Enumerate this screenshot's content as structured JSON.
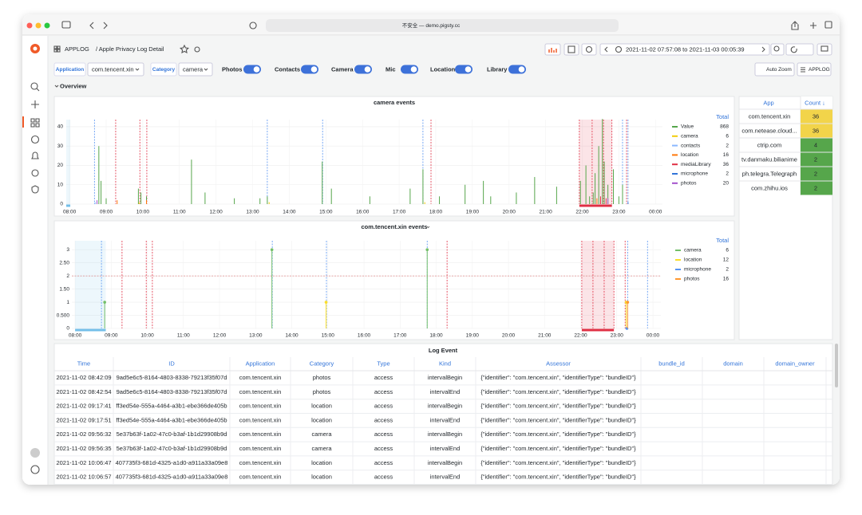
{
  "browser": {
    "address": "不安全 — demo.pigsty.cc"
  },
  "header": {
    "folder": "APPLOG",
    "title": "/ Apple Privacy Log Detail",
    "time_range": "2021-11-02 07:57:08 to 2021-11-03 00:05:39"
  },
  "variables": [
    {
      "label": "Application",
      "value": "com.tencent.xin"
    },
    {
      "label": "Category",
      "value": "camera"
    }
  ],
  "toggles": [
    "Photos",
    "Contacts",
    "Camera",
    "Mic",
    "Location",
    "Library"
  ],
  "buttons": [
    "Auto Zoom",
    "APPLOG"
  ],
  "row_title": "Overview",
  "chart_data": [
    {
      "type": "timeseries",
      "title": "camera events",
      "legend_header": "Total",
      "grid": true,
      "points": false,
      "xlim": [
        7.91,
        24.19
      ],
      "ylim": [
        0,
        43.7
      ],
      "xticks": [
        {
          "value": 8,
          "label": "08:00"
        },
        {
          "value": 9,
          "label": "09:00"
        },
        {
          "value": 10,
          "label": "10:00"
        },
        {
          "value": 11,
          "label": "11:00"
        },
        {
          "value": 12,
          "label": "12:00"
        },
        {
          "value": 13,
          "label": "13:00"
        },
        {
          "value": 14,
          "label": "14:00"
        },
        {
          "value": 15,
          "label": "15:00"
        },
        {
          "value": 16,
          "label": "16:00"
        },
        {
          "value": 17,
          "label": "17:00"
        },
        {
          "value": 18,
          "label": "18:00"
        },
        {
          "value": 19,
          "label": "19:00"
        },
        {
          "value": 20,
          "label": "20:00"
        },
        {
          "value": 21,
          "label": "21:00"
        },
        {
          "value": 22,
          "label": "22:00"
        },
        {
          "value": 23,
          "label": "23:00"
        },
        {
          "value": 24,
          "label": "00:00"
        }
      ],
      "yticks": [
        0,
        10,
        20,
        30,
        40
      ],
      "series": [
        {
          "name": "Value",
          "color": "#56a64b",
          "total": 868,
          "x": [
            8.8,
            8.86,
            9.0,
            9.88,
            9.95,
            10.1,
            11.33,
            11.7,
            12.5,
            13.2,
            13.4,
            14.9,
            15.15,
            16.2,
            17.3,
            17.65,
            18.1,
            18.8,
            19.3,
            19.5,
            20.2,
            20.7,
            21.3,
            21.95,
            22.1,
            22.2,
            22.3,
            22.35,
            22.45,
            22.55,
            22.6,
            22.7,
            22.85,
            23.0,
            23.1
          ],
          "values": [
            30,
            12,
            3,
            8,
            6,
            4,
            23,
            6,
            3,
            3,
            4,
            22,
            8,
            4,
            8,
            18,
            4,
            10,
            12,
            4,
            6,
            14,
            9,
            12,
            20,
            4,
            6,
            16,
            30,
            44,
            22,
            10,
            18,
            4,
            10
          ]
        },
        {
          "name": "camera",
          "color": "#f2cc0c",
          "total": 6,
          "x": [
            9.9,
            13.45,
            17.7
          ],
          "values": [
            1,
            1,
            1
          ]
        },
        {
          "name": "contacts",
          "color": "#8ab8ff",
          "total": 2,
          "x": [
            8.7
          ],
          "values": [
            1
          ]
        },
        {
          "name": "location",
          "color": "#ff780a",
          "total": 16,
          "x": [
            9.3,
            10.1,
            22.4
          ],
          "values": [
            2,
            2,
            3
          ]
        },
        {
          "name": "mediaLibrary",
          "color": "#e02f44",
          "total": 36,
          "x": [
            22.5,
            22.65
          ],
          "values": [
            4,
            3
          ]
        },
        {
          "name": "microphone",
          "color": "#3274d9",
          "total": 2,
          "x": [
            23.25
          ],
          "values": [
            1
          ]
        },
        {
          "name": "photos",
          "color": "#a352cc",
          "total": 20,
          "x": [
            8.75,
            22.7
          ],
          "values": [
            2,
            3
          ]
        }
      ],
      "annotations": [
        {
          "x": 8.68,
          "color": "#5794f2"
        },
        {
          "x": 9.26,
          "color": "#e02f44"
        },
        {
          "x": 9.92,
          "color": "#e02f44"
        },
        {
          "x": 10.11,
          "color": "#e02f44"
        },
        {
          "x": 13.4,
          "color": "#5794f2"
        },
        {
          "x": 14.91,
          "color": "#5794f2"
        },
        {
          "x": 17.65,
          "color": "#5794f2"
        },
        {
          "x": 17.87,
          "color": "#e02f44"
        },
        {
          "x": 21.92,
          "color": "#e02f44"
        },
        {
          "x": 22.27,
          "color": "#e02f44"
        },
        {
          "x": 22.58,
          "color": "#e02f44"
        },
        {
          "x": 22.81,
          "color": "#e02f44"
        },
        {
          "x": 23.1,
          "color": "#5794f2"
        },
        {
          "x": 23.21,
          "color": "#e02f44"
        },
        {
          "x": 23.25,
          "color": "#5794f2"
        }
      ],
      "regions": [
        {
          "from": 7.91,
          "to": 8.02,
          "color": "#73bfe9"
        },
        {
          "from": 21.92,
          "to": 22.81,
          "color": "#e02f44"
        }
      ]
    },
    {
      "type": "timeseries",
      "title": "com.tencent.xin events",
      "legend_header": "Total",
      "grid": true,
      "points": true,
      "xlim": [
        7.91,
        24.22
      ],
      "ylim": [
        0,
        3.34
      ],
      "threshold": 2,
      "xticks": [
        {
          "value": 8,
          "label": "08:00"
        },
        {
          "value": 9,
          "label": "09:00"
        },
        {
          "value": 10,
          "label": "10:00"
        },
        {
          "value": 11,
          "label": "11:00"
        },
        {
          "value": 12,
          "label": "12:00"
        },
        {
          "value": 13,
          "label": "13:00"
        },
        {
          "value": 14,
          "label": "14:00"
        },
        {
          "value": 15,
          "label": "15:00"
        },
        {
          "value": 16,
          "label": "16:00"
        },
        {
          "value": 17,
          "label": "17:00"
        },
        {
          "value": 18,
          "label": "18:00"
        },
        {
          "value": 19,
          "label": "19:00"
        },
        {
          "value": 20,
          "label": "20:00"
        },
        {
          "value": 21,
          "label": "21:00"
        },
        {
          "value": 22,
          "label": "22:00"
        },
        {
          "value": 23,
          "label": "23:00"
        },
        {
          "value": 24,
          "label": "00:00"
        }
      ],
      "yticks": [
        0,
        {
          "value": 0.5,
          "label": "0.500"
        },
        1,
        {
          "value": 1.5,
          "label": "1.50"
        },
        2,
        {
          "value": 2.5,
          "label": "2.50"
        },
        3
      ],
      "series": [
        {
          "name": "camera",
          "color": "#73bf69",
          "total": 6,
          "x": [
            8.82,
            13.45,
            17.75
          ],
          "values": [
            1,
            3,
            3
          ]
        },
        {
          "name": "location",
          "color": "#fade2a",
          "total": 12,
          "x": [
            14.95,
            23.26
          ],
          "values": [
            1,
            1
          ]
        },
        {
          "name": "microphone",
          "color": "#5794f2",
          "total": 2,
          "x": [
            23.28
          ],
          "values": [
            0
          ]
        },
        {
          "name": "photos",
          "color": "#ff9830",
          "total": 16,
          "x": [
            23.3
          ],
          "values": [
            1
          ]
        }
      ],
      "annotations": [
        {
          "x": 8.73,
          "color": "#5794f2"
        },
        {
          "x": 9.3,
          "color": "#e02f44"
        },
        {
          "x": 9.97,
          "color": "#e02f44"
        },
        {
          "x": 10.14,
          "color": "#e02f44"
        },
        {
          "x": 13.46,
          "color": "#5794f2"
        },
        {
          "x": 14.96,
          "color": "#5794f2"
        },
        {
          "x": 17.75,
          "color": "#5794f2"
        },
        {
          "x": 18.3,
          "color": "#e02f44"
        },
        {
          "x": 22.03,
          "color": "#e02f44"
        },
        {
          "x": 22.34,
          "color": "#e02f44"
        },
        {
          "x": 22.65,
          "color": "#e02f44"
        },
        {
          "x": 22.92,
          "color": "#e02f44"
        },
        {
          "x": 23.23,
          "color": "#e02f44"
        },
        {
          "x": 23.3,
          "color": "#5794f2"
        },
        {
          "x": 23.85,
          "color": "#5794f2"
        }
      ],
      "regions": [
        {
          "from": 8.0,
          "to": 8.85,
          "color": "#73bfe9"
        },
        {
          "from": 22.03,
          "to": 22.92,
          "color": "#e02f44"
        }
      ]
    }
  ],
  "app_table": {
    "headers": [
      "App",
      "Count ↓"
    ],
    "rows": [
      [
        "com.tencent.xin",
        36
      ],
      [
        "com.netease.cloud...",
        36
      ],
      [
        "ctrip.com",
        4
      ],
      [
        "tv.danmaku.bilianime",
        2
      ],
      [
        "ph.telegra.Telegraph",
        2
      ],
      [
        "com.zhihu.ios",
        2
      ]
    ],
    "count_colors": [
      "#f2d44a",
      "#f2d44a",
      "#56a64b",
      "#56a64b",
      "#56a64b",
      "#56a64b"
    ]
  },
  "log_table": {
    "title": "Log Event",
    "headers": [
      "Time",
      "ID",
      "Application",
      "Category",
      "Type",
      "Kind",
      "Assessor",
      "bundle_id",
      "domain",
      "domain_owner"
    ],
    "rows": [
      [
        "2021-11-02 08:42:09",
        "9ad5e6c5-8164-4803-8338-79213f35f07d",
        "com.tencent.xin",
        "photos",
        "access",
        "intervalBegin",
        "{\"identifier\": \"com.tencent.xin\", \"identifierType\": \"bundleID\"}"
      ],
      [
        "2021-11-02 08:42:54",
        "9ad5e6c5-8164-4803-8338-79213f35f07d",
        "com.tencent.xin",
        "photos",
        "access",
        "intervalEnd",
        "{\"identifier\": \"com.tencent.xin\", \"identifierType\": \"bundleID\"}"
      ],
      [
        "2021-11-02 09:17:41",
        "ff3ed54e-555a-4464-a3b1-ebe366de405b",
        "com.tencent.xin",
        "location",
        "access",
        "intervalBegin",
        "{\"identifier\": \"com.tencent.xin\", \"identifierType\": \"bundleID\"}"
      ],
      [
        "2021-11-02 09:17:51",
        "ff3ed54e-555a-4464-a3b1-ebe366de405b",
        "com.tencent.xin",
        "location",
        "access",
        "intervalEnd",
        "{\"identifier\": \"com.tencent.xin\", \"identifierType\": \"bundleID\"}"
      ],
      [
        "2021-11-02 09:56:32",
        "5e37b63f-1a02-47c0-b3af-1b1d29908b9d",
        "com.tencent.xin",
        "camera",
        "access",
        "intervalBegin",
        "{\"identifier\": \"com.tencent.xin\", \"identifierType\": \"bundleID\"}"
      ],
      [
        "2021-11-02 09:56:35",
        "5e37b63f-1a02-47c0-b3af-1b1d29908b9d",
        "com.tencent.xin",
        "camera",
        "access",
        "intervalEnd",
        "{\"identifier\": \"com.tencent.xin\", \"identifierType\": \"bundleID\"}"
      ],
      [
        "2021-11-02 10:06:47",
        "407735f3-681d-4325-a1d0-a911a33a09e8",
        "com.tencent.xin",
        "location",
        "access",
        "intervalBegin",
        "{\"identifier\": \"com.tencent.xin\", \"identifierType\": \"bundleID\"}"
      ],
      [
        "2021-11-02 10:06:57",
        "407735f3-681d-4325-a1d0-a911a33a09e8",
        "com.tencent.xin",
        "location",
        "access",
        "intervalEnd",
        "{\"identifier\": \"com.tencent.xin\", \"identifierType\": \"bundleID\"}"
      ]
    ]
  }
}
